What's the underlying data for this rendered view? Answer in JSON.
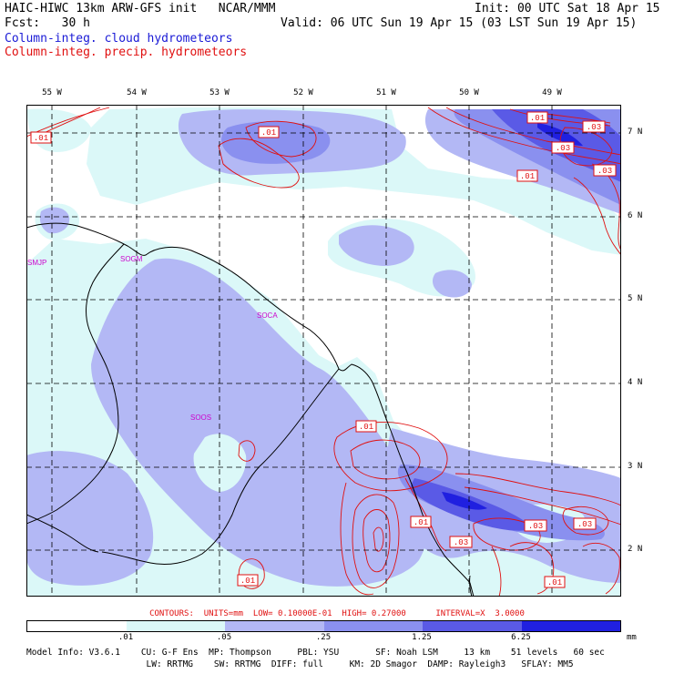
{
  "header": {
    "title": "HAIC-HIWC 13km ARW-GFS init   NCAR/MMM",
    "init": "Init: 00 UTC Sat 18 Apr 15",
    "fcst": "Fcst:   30 h",
    "valid": "Valid: 06 UTC Sun 19 Apr 15 (03 LST Sun 19 Apr 15)",
    "field1": "Column-integ. cloud hydrometeors",
    "field2": "Column-integ. precip. hydrometeors"
  },
  "axes": {
    "lon_labels": [
      "55 W",
      "54 W",
      "53 W",
      "52 W",
      "51 W",
      "50 W",
      "49 W"
    ],
    "lat_labels": [
      "7 N",
      "6 N",
      "5 N",
      "4 N",
      "3 N",
      "2 N"
    ]
  },
  "stations": [
    "SMJP",
    "SOGM",
    "SOCA",
    "SOOS"
  ],
  "contour_labels": [
    ".01",
    ".01",
    ".03",
    ".03",
    ".03",
    ".01",
    ".01",
    ".01",
    ".03",
    ".03",
    ".03",
    ".01",
    ".01",
    ".01"
  ],
  "colors": {
    "level1": "#dbf8f8",
    "level2": "#b3b8f5",
    "level3": "#8a90ef",
    "level4": "#5a5ae6",
    "level5": "#2020e0",
    "contour": "#e01010",
    "station": "#cc00cc"
  },
  "contours_note_line": "CONTOURS:  UNITS=mm  LOW= 0.10000E-01  HIGH= 0.27000      INTERVAL=X  3.0000",
  "colorbar": {
    "labels": [
      ".01",
      ".05",
      ".25",
      "1.25",
      "6.25"
    ],
    "unit": "mm"
  },
  "model_info": {
    "line1": "Model Info: V3.6.1    CU: G-F Ens  MP: Thompson     PBL: YSU       SF: Noah LSM     13 km    51 levels   60 sec",
    "line2": "                       LW: RRTMG    SW: RRTMG  DIFF: full     KM: 2D Smagor  DAMP: Rayleigh3   SFLAY: MM5"
  }
}
